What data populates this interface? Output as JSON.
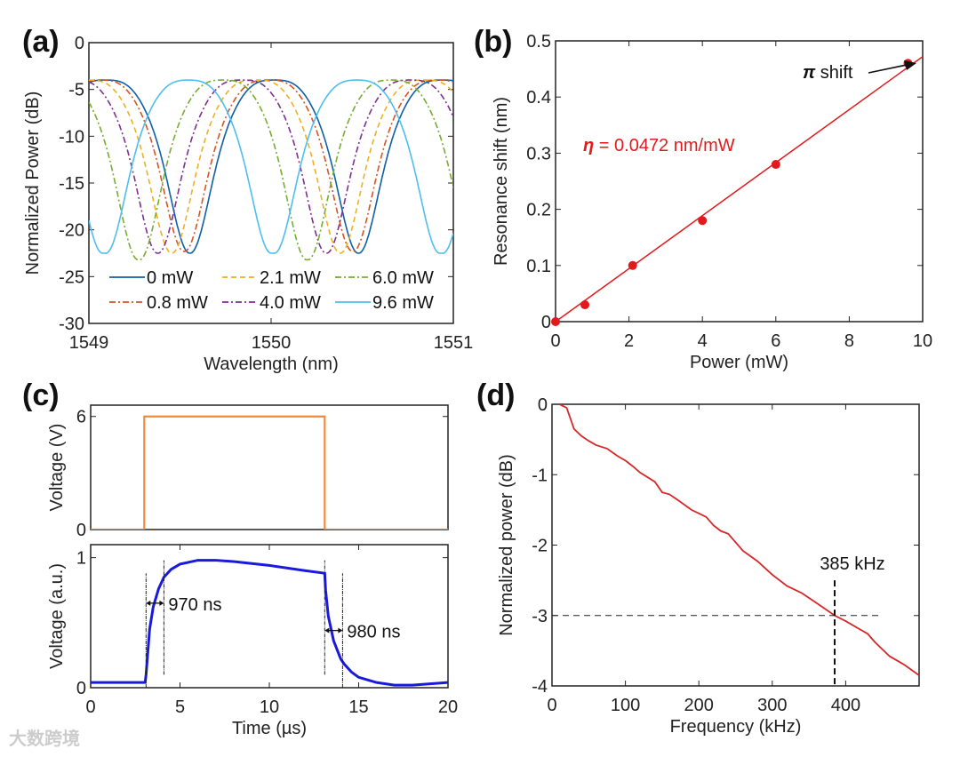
{
  "watermark": "大数跨境",
  "chart_data": [
    {
      "panel": "(a)",
      "type": "line",
      "xlabel": "Wavelength (nm)",
      "ylabel": "Normalized Power (dB)",
      "xlim": [
        1549,
        1551
      ],
      "ylim": [
        -30,
        0
      ],
      "xticks": [
        1549,
        1550,
        1551
      ],
      "xtick_labels": [
        "1549",
        "1550",
        "1551"
      ],
      "yticks": [
        0,
        -5,
        -10,
        -15,
        -20,
        -25,
        -30
      ],
      "ytick_labels": [
        "0",
        "-5",
        "-10",
        "-15",
        "-20",
        "-25",
        "-30"
      ],
      "legend_placement": "bottom",
      "fsr_nm": 0.925,
      "baseline_dB": -4,
      "series": [
        {
          "name": "0 mW",
          "color": "#0e5fa8",
          "style": "solid",
          "dips_nm": [
            1549.556,
            1550.478
          ],
          "dip_dB": -22.5
        },
        {
          "name": "0.8 mW",
          "color": "#d9531e",
          "style": "dashdot",
          "dips_nm": [
            1549.522,
            1550.45
          ],
          "dip_dB": -22.3
        },
        {
          "name": "2.1 mW",
          "color": "#edb120",
          "style": "dashed",
          "dips_nm": [
            1549.454,
            1550.38
          ],
          "dip_dB": -22.5
        },
        {
          "name": "4.0 mW",
          "color": "#7e2f8e",
          "style": "dashdot",
          "dips_nm": [
            1549.38,
            1550.302
          ],
          "dip_dB": -22.5
        },
        {
          "name": "6.0 mW",
          "color": "#77ac30",
          "style": "dashdot",
          "dips_nm": [
            1549.278,
            1550.195
          ],
          "dip_dB": -23.2
        },
        {
          "name": "9.6 mW",
          "color": "#4dbeee",
          "style": "solid",
          "dips_nm": [
            1549.083,
            1550.0,
            1550.943
          ],
          "dip_dB": -22.5
        }
      ]
    },
    {
      "panel": "(b)",
      "type": "scatter",
      "xlabel": "Power (mW)",
      "ylabel": "Resonance shift (nm)",
      "xlim": [
        0,
        10
      ],
      "ylim": [
        0,
        0.5
      ],
      "xticks": [
        0,
        2,
        4,
        6,
        8,
        10
      ],
      "xtick_labels": [
        "0",
        "2",
        "4",
        "6",
        "8",
        "10"
      ],
      "yticks": [
        0,
        0.1,
        0.2,
        0.3,
        0.4,
        0.5
      ],
      "ytick_labels": [
        "0",
        "0.1",
        "0.2",
        "0.3",
        "0.4",
        "0.5"
      ],
      "color": "#e31a1c",
      "points": {
        "x": [
          0,
          0.8,
          2.1,
          4.0,
          6.0,
          9.6
        ],
        "y": [
          0,
          0.03,
          0.1,
          0.18,
          0.28,
          0.46
        ]
      },
      "fit": {
        "slope": 0.0472,
        "intercept": 0,
        "x": [
          0,
          10
        ]
      },
      "annotations": {
        "fit_symbol": "η",
        "fit_text": " = 0.0472 nm/mW",
        "pi_symbol": "π",
        "pi_text": " shift"
      }
    },
    {
      "panel": "(c)",
      "subplot": "top",
      "type": "line",
      "ylabel": "Voltage (V)",
      "xlim": [
        0,
        20
      ],
      "ylim": [
        0,
        6.6
      ],
      "yticks": [
        0,
        6
      ],
      "ytick_labels": [
        "0",
        "6"
      ],
      "color": "#f08a3c",
      "x": [
        0,
        3.0,
        3.0,
        13.1,
        13.1,
        20
      ],
      "y": [
        0,
        0,
        6,
        6,
        0,
        0
      ]
    },
    {
      "panel": "(c)",
      "subplot": "bottom",
      "type": "line",
      "xlabel": "Time (µs)",
      "ylabel": "Voltage (a.u.)",
      "xlim": [
        0,
        20
      ],
      "ylim": [
        0,
        1.1
      ],
      "xticks": [
        0,
        5,
        10,
        15,
        20
      ],
      "xtick_labels": [
        "0",
        "5",
        "10",
        "15",
        "20"
      ],
      "yticks": [
        0,
        1
      ],
      "ytick_labels": [
        "0",
        "1"
      ],
      "color": "#1a1adc",
      "x": [
        0,
        3.05,
        3.1,
        3.3,
        3.5,
        3.8,
        4.1,
        4.5,
        5,
        6,
        7,
        8,
        10,
        12,
        13.1,
        13.15,
        13.3,
        13.6,
        14.0,
        14.2,
        14.6,
        15,
        16,
        17,
        18,
        20
      ],
      "y": [
        0.04,
        0.04,
        0.1,
        0.45,
        0.62,
        0.76,
        0.85,
        0.91,
        0.95,
        0.98,
        0.98,
        0.97,
        0.94,
        0.9,
        0.88,
        0.75,
        0.55,
        0.36,
        0.22,
        0.18,
        0.12,
        0.08,
        0.04,
        0.02,
        0.02,
        0.04
      ],
      "markers": [
        {
          "t": 3.1,
          "v": [
            0,
            0.88
          ]
        },
        {
          "t": 4.1,
          "v": [
            0.1,
            0.98
          ]
        },
        {
          "t": 13.1,
          "v": [
            0.1,
            0.98
          ]
        },
        {
          "t": 14.1,
          "v": [
            0,
            0.88
          ]
        }
      ],
      "annotations": [
        {
          "text": "970 ns",
          "from": 3.1,
          "to": 4.1,
          "v": 0.65
        },
        {
          "text": "980 ns",
          "from": 13.1,
          "to": 14.1,
          "v": 0.44
        }
      ]
    },
    {
      "panel": "(d)",
      "type": "line",
      "xlabel": "Frequency (kHz)",
      "ylabel": "Normalized power (dB)",
      "xlim": [
        0,
        500
      ],
      "ylim": [
        -4,
        0
      ],
      "xticks": [
        0,
        100,
        200,
        300,
        400
      ],
      "xtick_labels": [
        "0",
        "100",
        "200",
        "300",
        "400"
      ],
      "yticks": [
        0,
        -1,
        -2,
        -3,
        -4
      ],
      "ytick_labels": [
        "0",
        "-1",
        "-2",
        "-3",
        "-4"
      ],
      "color": "#d62728",
      "x": [
        10,
        20,
        30,
        40,
        50,
        60,
        75,
        90,
        100,
        110,
        120,
        140,
        150,
        160,
        170,
        190,
        200,
        210,
        220,
        230,
        240,
        250,
        260,
        280,
        300,
        320,
        340,
        360,
        385,
        400,
        420,
        430,
        440,
        460,
        480,
        500
      ],
      "y": [
        0,
        -0.05,
        -0.35,
        -0.45,
        -0.52,
        -0.58,
        -0.63,
        -0.74,
        -0.8,
        -0.88,
        -0.97,
        -1.1,
        -1.25,
        -1.28,
        -1.35,
        -1.5,
        -1.55,
        -1.6,
        -1.72,
        -1.8,
        -1.84,
        -1.96,
        -2.08,
        -2.23,
        -2.42,
        -2.58,
        -2.68,
        -2.82,
        -3.0,
        -3.08,
        -3.2,
        -3.26,
        -3.38,
        -3.58,
        -3.7,
        -3.85
      ],
      "cutoff": {
        "text": "385 kHz",
        "freq_kHz": 385,
        "level_dB": -3
      }
    }
  ]
}
